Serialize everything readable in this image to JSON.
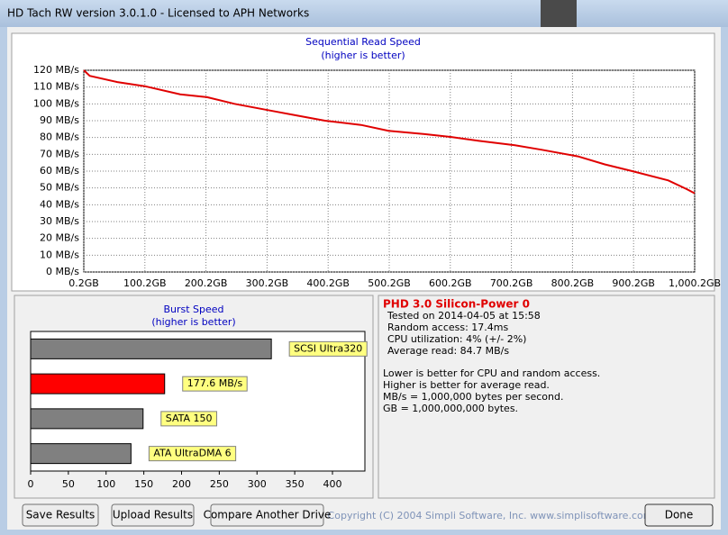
{
  "window": {
    "title": "HD Tach RW version 3.0.1.0 - Licensed to APH Networks"
  },
  "chart_data": [
    {
      "type": "line",
      "title": "Sequential Read Speed",
      "subtitle": "(higher is better)",
      "x": [
        0.2,
        10,
        55,
        100,
        158,
        202,
        247,
        306,
        350,
        395,
        454,
        499,
        558,
        602,
        647,
        706,
        750,
        809,
        853,
        898,
        957,
        986,
        1000.2
      ],
      "values": [
        120,
        116.7,
        113,
        110.5,
        105.7,
        104,
        100,
        96,
        93,
        90,
        87.5,
        84,
        82,
        80.3,
        78,
        75.4,
        72.7,
        68.8,
        64,
        60,
        54.5,
        49.5,
        46.8
      ],
      "color": "#e00000",
      "xlim": [
        0.2,
        1000.2
      ],
      "xticks": [
        {
          "value": 0.2,
          "label": "0.2GB"
        },
        {
          "value": 100.2,
          "label": "100.2GB"
        },
        {
          "value": 200.2,
          "label": "200.2GB"
        },
        {
          "value": 300.2,
          "label": "300.2GB"
        },
        {
          "value": 400.2,
          "label": "400.2GB"
        },
        {
          "value": 500.2,
          "label": "500.2GB"
        },
        {
          "value": 600.2,
          "label": "600.2GB"
        },
        {
          "value": 700.2,
          "label": "700.2GB"
        },
        {
          "value": 800.2,
          "label": "800.2GB"
        },
        {
          "value": 900.2,
          "label": "900.2GB"
        },
        {
          "value": 1000.2,
          "label": "1,000.2GB"
        }
      ],
      "ylim": [
        0,
        120
      ],
      "yticks": [
        {
          "value": 0,
          "label": "0 MB/s"
        },
        {
          "value": 10,
          "label": "10 MB/s"
        },
        {
          "value": 20,
          "label": "20 MB/s"
        },
        {
          "value": 30,
          "label": "30 MB/s"
        },
        {
          "value": 40,
          "label": "40 MB/s"
        },
        {
          "value": 50,
          "label": "50 MB/s"
        },
        {
          "value": 60,
          "label": "60 MB/s"
        },
        {
          "value": 70,
          "label": "70 MB/s"
        },
        {
          "value": 80,
          "label": "80 MB/s"
        },
        {
          "value": 90,
          "label": "90 MB/s"
        },
        {
          "value": 100,
          "label": "100 MB/s"
        },
        {
          "value": 110,
          "label": "110 MB/s"
        },
        {
          "value": 120,
          "label": "120 MB/s"
        }
      ],
      "grid": true
    },
    {
      "type": "barh",
      "title": "Burst Speed",
      "subtitle": "(higher is better)",
      "categories": [
        "SCSI Ultra320",
        null,
        "SATA 150",
        "ATA UltraDMA 6"
      ],
      "values": [
        319,
        177.6,
        149,
        133
      ],
      "value_labels": [
        null,
        "177.6 MB/s",
        null,
        null
      ],
      "colors": [
        "#808080",
        "#ff0000",
        "#808080",
        "#808080"
      ],
      "xlim": [
        0,
        443
      ],
      "xticks": [
        0,
        50,
        100,
        150,
        200,
        250,
        300,
        350,
        400
      ]
    }
  ],
  "info": {
    "title": "PHD 3.0 Silicon-Power 0",
    "details": [
      "Tested on 2014-04-05 at 15:58",
      "Random access: 17.4ms",
      "CPU utilization: 4% (+/- 2%)",
      "Average read: 84.7 MB/s"
    ],
    "notes": [
      "Lower is better for CPU and random access.",
      "Higher is better for average read.",
      "MB/s = 1,000,000 bytes per second.",
      "GB = 1,000,000,000 bytes."
    ]
  },
  "buttons": [
    "Save Results",
    "Upload Results",
    "Compare Another Drive",
    "Done"
  ],
  "copyright": "Copyright (C) 2004 Simpli Software, Inc. www.simplisoftware.com"
}
